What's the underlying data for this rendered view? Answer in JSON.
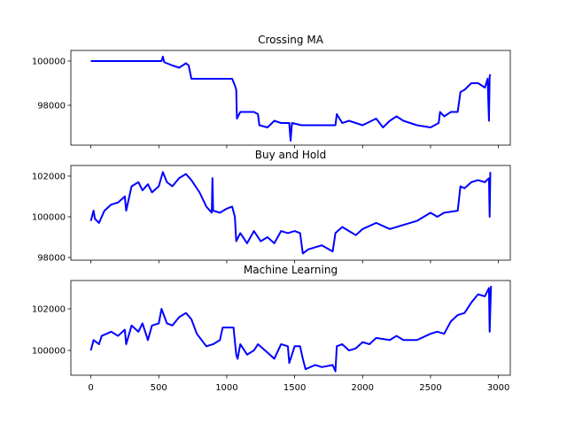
{
  "chart_data": [
    {
      "type": "line",
      "title": "Crossing MA",
      "color": "#0000ff",
      "x": [
        0,
        520,
        530,
        540,
        600,
        650,
        700,
        720,
        740,
        1040,
        1060,
        1070,
        1075,
        1100,
        1200,
        1230,
        1240,
        1300,
        1350,
        1400,
        1460,
        1470,
        1480,
        1550,
        1800,
        1810,
        1850,
        1900,
        2000,
        2100,
        2150,
        2200,
        2250,
        2300,
        2400,
        2500,
        2560,
        2570,
        2600,
        2650,
        2700,
        2720,
        2750,
        2800,
        2850,
        2900,
        2920,
        2930,
        2935,
        2940
      ],
      "values": [
        100000,
        100000,
        100200,
        99950,
        99800,
        99700,
        99900,
        99800,
        99200,
        99200,
        98900,
        98700,
        97400,
        97700,
        97700,
        97600,
        97100,
        97000,
        97300,
        97200,
        97200,
        96400,
        97200,
        97100,
        97100,
        97600,
        97200,
        97300,
        97100,
        97400,
        97000,
        97300,
        97500,
        97300,
        97100,
        97000,
        97200,
        97700,
        97500,
        97700,
        97700,
        98600,
        98700,
        99000,
        99000,
        98800,
        99200,
        97300,
        99300,
        99400
      ],
      "xlim": [
        -147,
        3087
      ],
      "ylim": [
        96200,
        100480
      ],
      "yticks": [
        98000,
        100000
      ]
    },
    {
      "type": "line",
      "title": "Buy and Hold",
      "color": "#0000ff",
      "x": [
        0,
        20,
        30,
        60,
        100,
        150,
        200,
        250,
        260,
        300,
        350,
        380,
        420,
        450,
        500,
        530,
        560,
        600,
        650,
        700,
        740,
        800,
        850,
        890,
        895,
        900,
        950,
        1000,
        1040,
        1060,
        1070,
        1100,
        1150,
        1200,
        1250,
        1300,
        1350,
        1400,
        1450,
        1500,
        1540,
        1560,
        1600,
        1700,
        1780,
        1800,
        1850,
        1900,
        1950,
        2000,
        2100,
        2200,
        2300,
        2400,
        2500,
        2550,
        2600,
        2700,
        2720,
        2750,
        2800,
        2850,
        2900,
        2930,
        2935,
        2940
      ],
      "values": [
        99800,
        100300,
        99900,
        99700,
        100300,
        100600,
        100700,
        101000,
        100300,
        101500,
        101700,
        101300,
        101600,
        101200,
        101500,
        102200,
        101700,
        101500,
        101900,
        102100,
        101800,
        101200,
        100500,
        100200,
        101900,
        100300,
        100200,
        100400,
        100500,
        100000,
        98800,
        99200,
        98700,
        99300,
        98800,
        99000,
        98700,
        99300,
        99200,
        99300,
        99200,
        98200,
        98400,
        98600,
        98300,
        99200,
        99500,
        99300,
        99100,
        99400,
        99700,
        99400,
        99600,
        99800,
        100200,
        100000,
        100200,
        100300,
        101500,
        101400,
        101700,
        101800,
        101700,
        101900,
        100000,
        102200
      ],
      "xlim": [
        -147,
        3087
      ],
      "ylim": [
        97870,
        102520
      ],
      "yticks": [
        98000,
        100000,
        102000
      ]
    },
    {
      "type": "line",
      "title": "Machine Learning",
      "color": "#0000ff",
      "x": [
        0,
        20,
        60,
        80,
        150,
        200,
        250,
        260,
        300,
        350,
        380,
        420,
        450,
        500,
        520,
        560,
        600,
        650,
        700,
        740,
        780,
        850,
        900,
        950,
        970,
        1050,
        1070,
        1080,
        1100,
        1150,
        1200,
        1230,
        1300,
        1350,
        1400,
        1450,
        1460,
        1500,
        1540,
        1560,
        1580,
        1650,
        1700,
        1780,
        1800,
        1810,
        1850,
        1900,
        1950,
        2000,
        2050,
        2100,
        2200,
        2250,
        2300,
        2400,
        2500,
        2550,
        2600,
        2650,
        2700,
        2750,
        2800,
        2850,
        2900,
        2930,
        2935,
        2945
      ],
      "values": [
        100000,
        100500,
        100300,
        100700,
        100900,
        100700,
        101000,
        100300,
        101200,
        100900,
        101300,
        100500,
        101200,
        101300,
        102000,
        101300,
        101200,
        101600,
        101800,
        101500,
        100800,
        100200,
        100300,
        100500,
        101100,
        101100,
        99800,
        99600,
        100300,
        99800,
        100000,
        100300,
        99900,
        99600,
        100300,
        100200,
        99400,
        100200,
        100200,
        99600,
        99100,
        99300,
        99200,
        99300,
        99000,
        100200,
        100300,
        100000,
        100100,
        100400,
        100300,
        100600,
        100500,
        100700,
        100500,
        100500,
        100800,
        100900,
        100800,
        101400,
        101700,
        101800,
        102300,
        102700,
        102600,
        103000,
        100900,
        103100
      ],
      "xlim": [
        -147,
        3087
      ],
      "ylim": [
        98810,
        103360
      ],
      "yticks": [
        100000,
        102000
      ],
      "xticks": [
        0,
        500,
        1000,
        1500,
        2000,
        2500,
        3000
      ]
    }
  ]
}
